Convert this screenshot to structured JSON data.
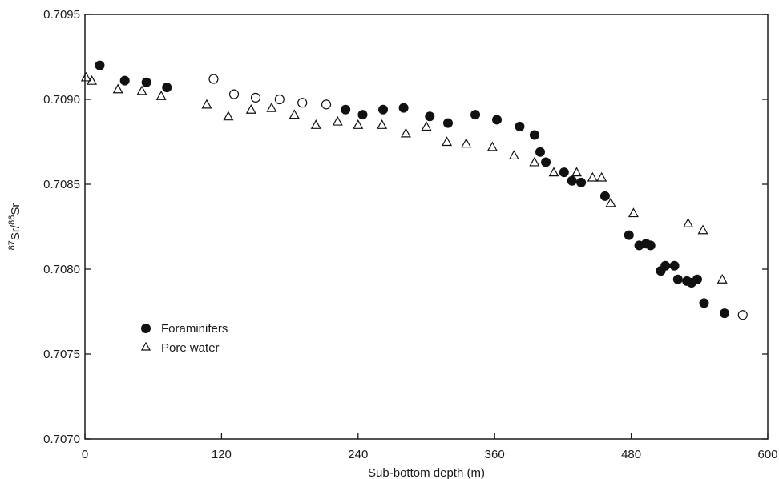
{
  "chart_data": {
    "type": "scatter",
    "title": "",
    "xlabel": "Sub-bottom depth (m)",
    "ylabel": {
      "mass1": "87",
      "symbol1": "Sr",
      "sep": "/",
      "mass2": "86",
      "symbol2": "Sr"
    },
    "xlim": [
      0,
      600
    ],
    "ylim": [
      0.707,
      0.7095
    ],
    "x_ticks": [
      0,
      120,
      240,
      360,
      480,
      600
    ],
    "x_tick_labels": [
      "0",
      "120",
      "240",
      "360",
      "480",
      "600"
    ],
    "y_ticks": [
      0.707,
      0.7075,
      0.708,
      0.7085,
      0.709,
      0.7095
    ],
    "y_tick_labels": [
      "0.7070",
      "0.7075",
      "0.7080",
      "0.7085",
      "0.7090",
      "0.7095"
    ],
    "grid": false,
    "legend_position": "center-left",
    "colors": {
      "marker": "#111111",
      "axis": "#1a1a1a"
    },
    "series": [
      {
        "name": "Foraminifers",
        "marker": "filled-circle",
        "points": [
          [
            13,
            0.7092
          ],
          [
            35,
            0.70911
          ],
          [
            54,
            0.7091
          ],
          [
            72,
            0.70907
          ],
          [
            229,
            0.70894
          ],
          [
            244,
            0.70891
          ],
          [
            262,
            0.70894
          ],
          [
            280,
            0.70895
          ],
          [
            303,
            0.7089
          ],
          [
            319,
            0.70886
          ],
          [
            343,
            0.70891
          ],
          [
            362,
            0.70888
          ],
          [
            382,
            0.70884
          ],
          [
            395,
            0.70879
          ],
          [
            400,
            0.70869
          ],
          [
            405,
            0.70863
          ],
          [
            421,
            0.70857
          ],
          [
            428,
            0.70852
          ],
          [
            436,
            0.70851
          ],
          [
            457,
            0.70843
          ],
          [
            478,
            0.7082
          ],
          [
            487,
            0.70814
          ],
          [
            493,
            0.70815
          ],
          [
            497,
            0.70814
          ],
          [
            506,
            0.70799
          ],
          [
            510,
            0.70802
          ],
          [
            518,
            0.70802
          ],
          [
            521,
            0.70794
          ],
          [
            529,
            0.70793
          ],
          [
            533,
            0.70792
          ],
          [
            538,
            0.70794
          ],
          [
            544,
            0.7078
          ],
          [
            562,
            0.70774
          ]
        ]
      },
      {
        "name": "",
        "marker": "open-circle",
        "points": [
          [
            113,
            0.70912
          ],
          [
            131,
            0.70903
          ],
          [
            150,
            0.70901
          ],
          [
            171,
            0.709
          ],
          [
            191,
            0.70898
          ],
          [
            212,
            0.70897
          ],
          [
            578,
            0.70773
          ]
        ]
      },
      {
        "name": "Pore water",
        "marker": "open-triangle",
        "points": [
          [
            1,
            0.70913
          ],
          [
            6,
            0.70911
          ],
          [
            29,
            0.70906
          ],
          [
            50,
            0.70905
          ],
          [
            67,
            0.70902
          ],
          [
            107,
            0.70897
          ],
          [
            126,
            0.7089
          ],
          [
            146,
            0.70894
          ],
          [
            164,
            0.70895
          ],
          [
            184,
            0.70891
          ],
          [
            203,
            0.70885
          ],
          [
            222,
            0.70887
          ],
          [
            240,
            0.70885
          ],
          [
            261,
            0.70885
          ],
          [
            282,
            0.7088
          ],
          [
            300,
            0.70884
          ],
          [
            318,
            0.70875
          ],
          [
            335,
            0.70874
          ],
          [
            358,
            0.70872
          ],
          [
            377,
            0.70867
          ],
          [
            395,
            0.70863
          ],
          [
            412,
            0.70857
          ],
          [
            432,
            0.70857
          ],
          [
            446,
            0.70854
          ],
          [
            454,
            0.70854
          ],
          [
            462,
            0.70839
          ],
          [
            482,
            0.70833
          ],
          [
            530,
            0.70827
          ],
          [
            543,
            0.70823
          ],
          [
            560,
            0.70794
          ]
        ]
      }
    ]
  }
}
